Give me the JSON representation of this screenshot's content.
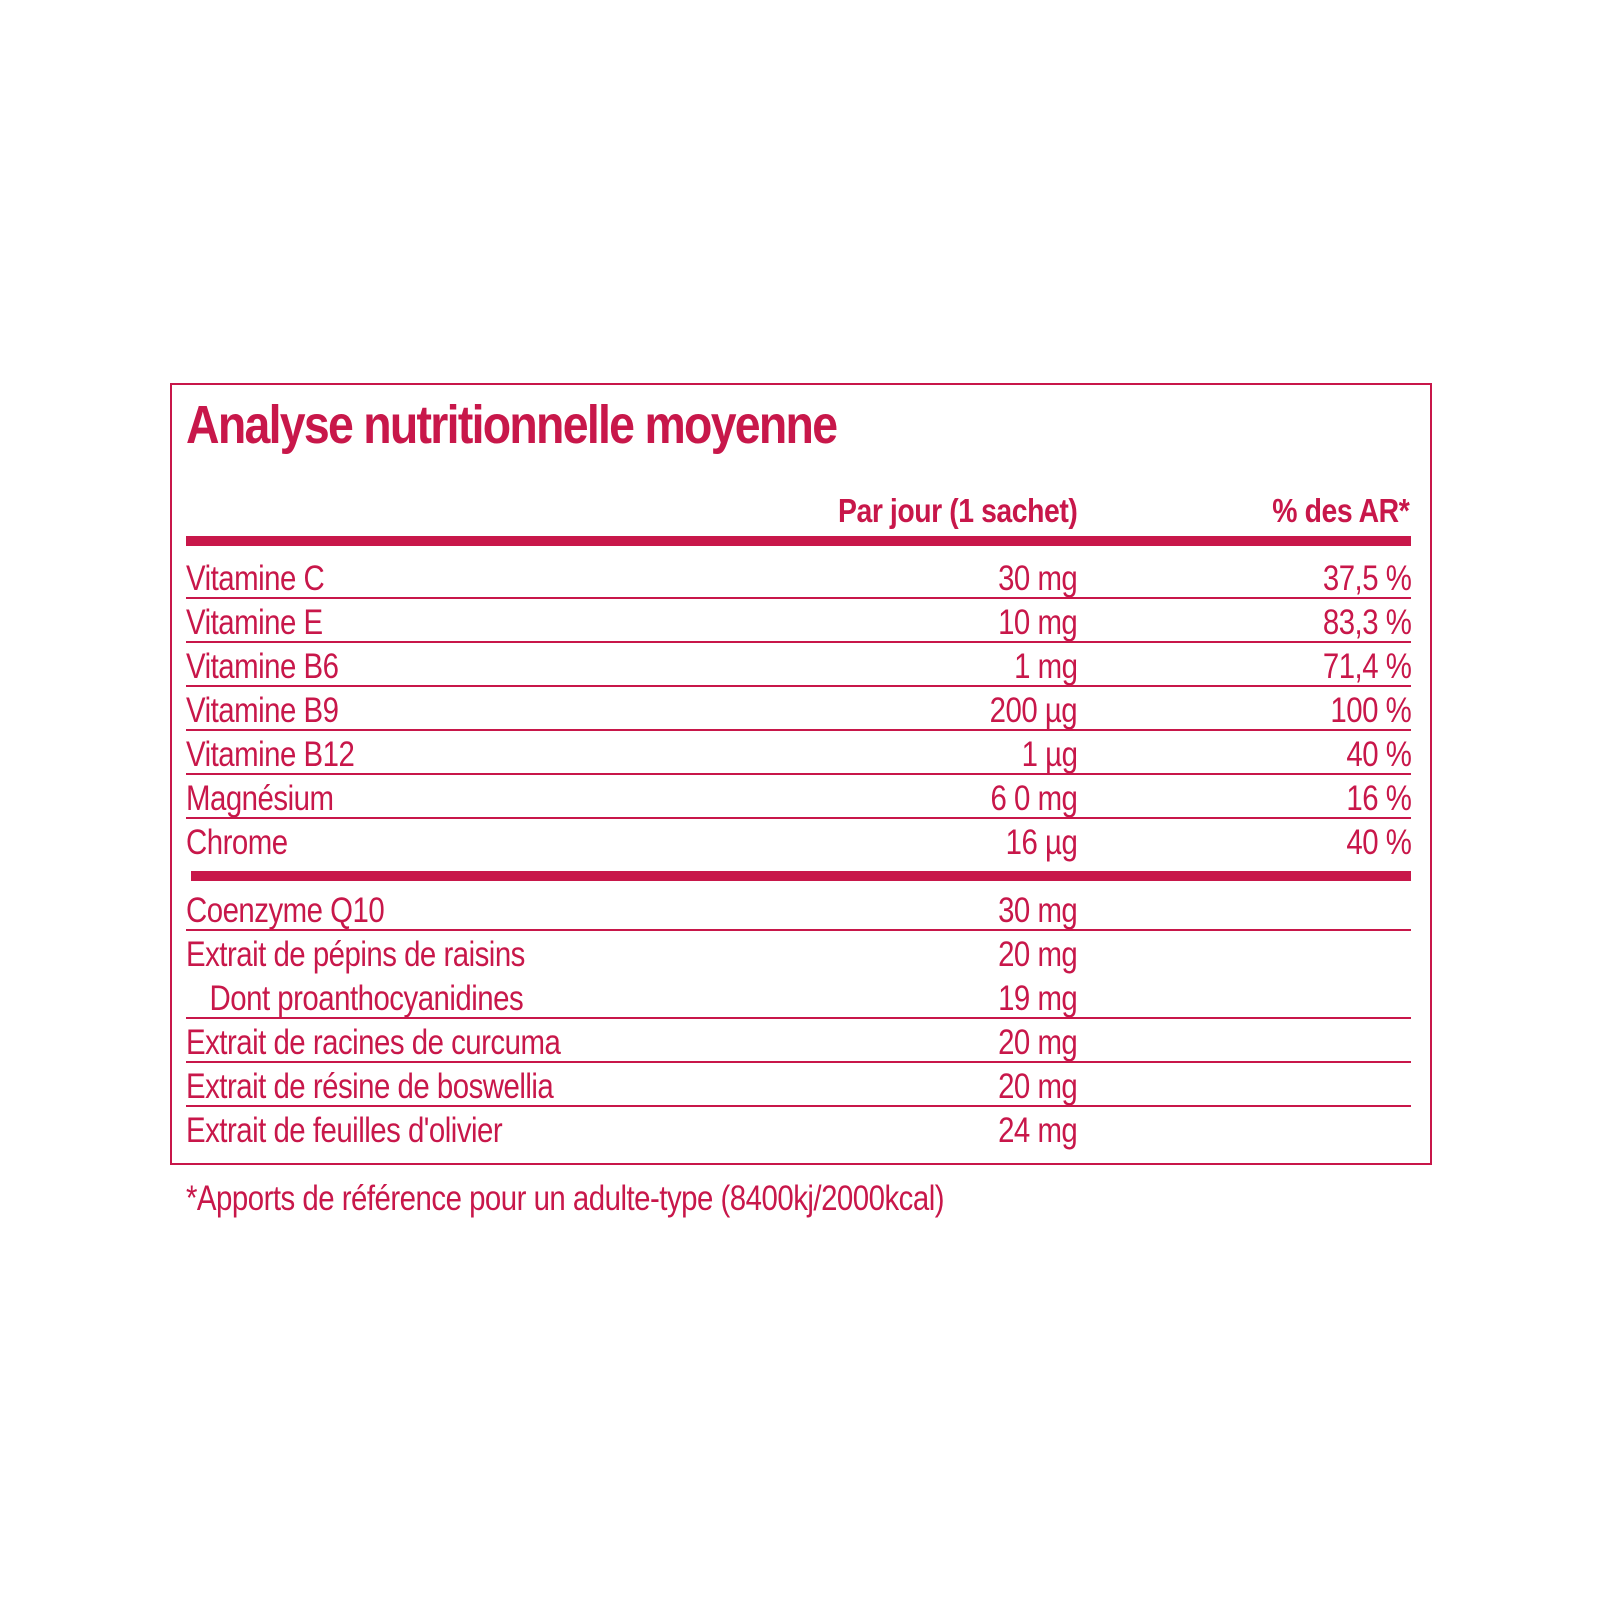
{
  "title": "Analyse nutritionnelle moyenne",
  "headers": {
    "per_day": "Par jour (1 sachet)",
    "percent_ar": "% des AR*"
  },
  "vitamins": [
    {
      "name": "Vitamine C",
      "qty": "30 mg",
      "pct": "37,5 %"
    },
    {
      "name": "Vitamine E",
      "qty": "10 mg",
      "pct": "83,3 %"
    },
    {
      "name": "Vitamine B6",
      "qty": "1 mg",
      "pct": "71,4 %"
    },
    {
      "name": "Vitamine B9",
      "qty": "200 µg",
      "pct": "100 %"
    },
    {
      "name": "Vitamine B12",
      "qty": "1 µg",
      "pct": "40 %"
    },
    {
      "name": "Magnésium",
      "qty": "6 0 mg",
      "pct": "16 %"
    },
    {
      "name": "Chrome",
      "qty": "16 µg",
      "pct": "40 %"
    }
  ],
  "others": [
    {
      "name": "Coenzyme Q10",
      "qty": "30 mg"
    },
    {
      "name": "Extrait de pépins de raisins",
      "qty": "20 mg"
    },
    {
      "name": "Dont proanthocyanidines",
      "qty": "19 mg"
    },
    {
      "name": "Extrait de racines de curcuma",
      "qty": "20 mg"
    },
    {
      "name": "Extrait de résine de boswellia",
      "qty": "20 mg"
    },
    {
      "name": "Extrait de feuilles d'olivier",
      "qty": "24 mg"
    }
  ],
  "footnote": "*Apports de référence pour un adulte-type (8400kj/2000kcal)"
}
